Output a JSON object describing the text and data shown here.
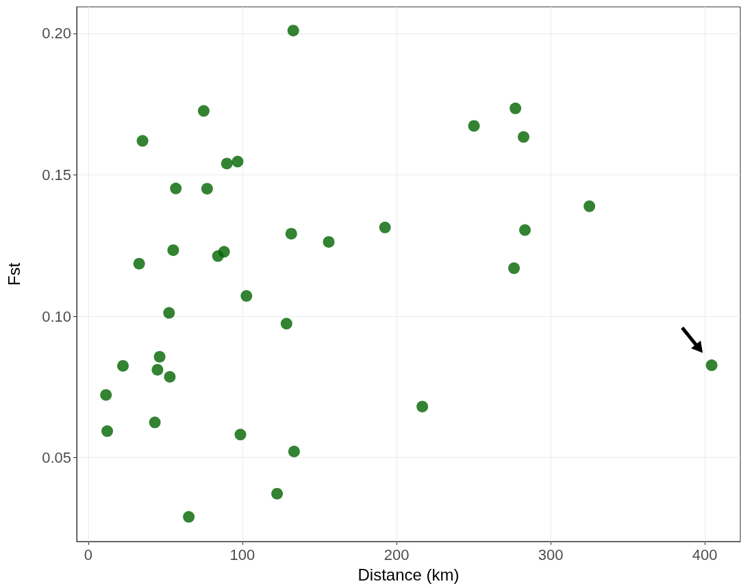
{
  "chart_data": {
    "type": "scatter",
    "xlabel": "Distance (km)",
    "ylabel": "Fst",
    "x": [
      133,
      74.9,
      35.2,
      89.9,
      96.9,
      56.8,
      77.1,
      33,
      55.1,
      84.1,
      88.1,
      102.6,
      52.4,
      128.6,
      131.7,
      156,
      192.5,
      46.3,
      44.9,
      22.5,
      52.9,
      11.5,
      12.3,
      43.2,
      98.7,
      133.5,
      122.5,
      65.2,
      216.7,
      250.2,
      277.1,
      282.4,
      325.1,
      283.3,
      276.2,
      404.4
    ],
    "values": [
      0.201,
      0.1726,
      0.162,
      0.154,
      0.1547,
      0.1452,
      0.1451,
      0.1186,
      0.1234,
      0.1213,
      0.1228,
      0.1072,
      0.1012,
      0.0974,
      0.1292,
      0.1263,
      0.1314,
      0.0857,
      0.0811,
      0.0825,
      0.0786,
      0.0722,
      0.0594,
      0.0625,
      0.0582,
      0.0522,
      0.0373,
      0.0291,
      0.0681,
      0.1673,
      0.1735,
      0.1634,
      0.1389,
      0.1305,
      0.117,
      0.0827
    ],
    "color": "#006400",
    "marker": "circle",
    "grid": true,
    "xlim": [
      -7.5,
      423
    ],
    "xticks": [
      0,
      100,
      200,
      300,
      400
    ],
    "ylim": [
      0.0204,
      0.2094
    ],
    "yticks": [
      {
        "value": 0.05,
        "label": "0.05"
      },
      {
        "value": 0.1,
        "label": "0.10"
      },
      {
        "value": 0.15,
        "label": "0.15"
      },
      {
        "value": 0.2,
        "label": "0.20"
      }
    ]
  }
}
